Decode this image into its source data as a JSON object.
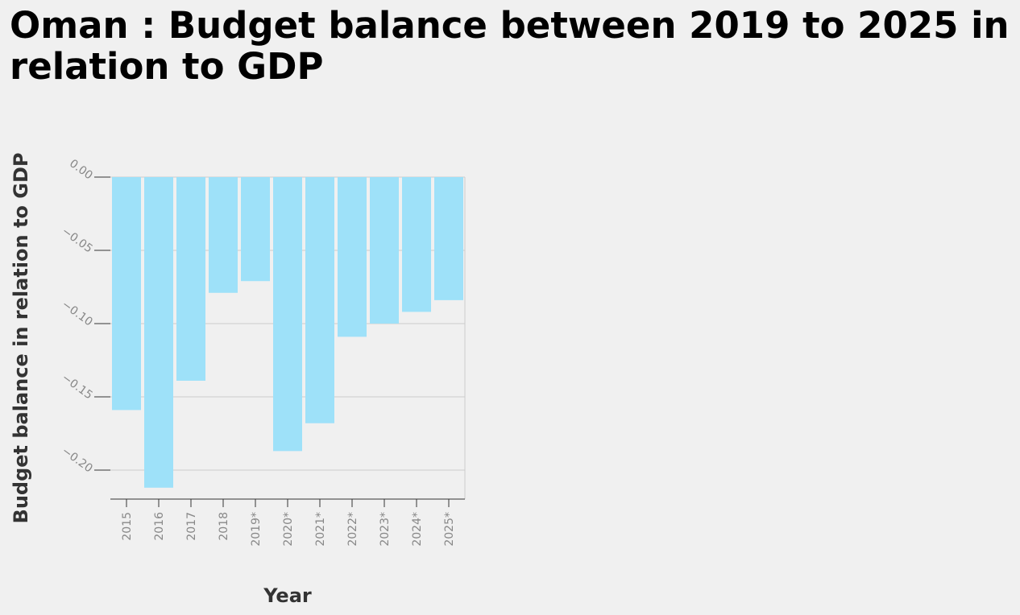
{
  "chart_data": {
    "type": "bar",
    "title": "Oman : Budget balance between 2019 to 2025 in relation to GDP",
    "xlabel": "Year",
    "ylabel": "Budget balance in relation to GDP",
    "categories": [
      "2015",
      "2016",
      "2017",
      "2018",
      "2019*",
      "2020*",
      "2021*",
      "2022*",
      "2023*",
      "2024*",
      "2025*"
    ],
    "values": [
      -0.159,
      -0.212,
      -0.139,
      -0.079,
      -0.071,
      -0.187,
      -0.168,
      -0.109,
      -0.1,
      -0.092,
      -0.084
    ],
    "ylim": [
      -0.219,
      0
    ],
    "yticks": [
      "0.00",
      "−0.05",
      "−0.10",
      "−0.15",
      "−0.20"
    ],
    "ytick_values": [
      0,
      -0.05,
      -0.1,
      -0.15,
      -0.2
    ],
    "bar_color": "#9ee1f9",
    "grid": true,
    "legend": "none"
  }
}
